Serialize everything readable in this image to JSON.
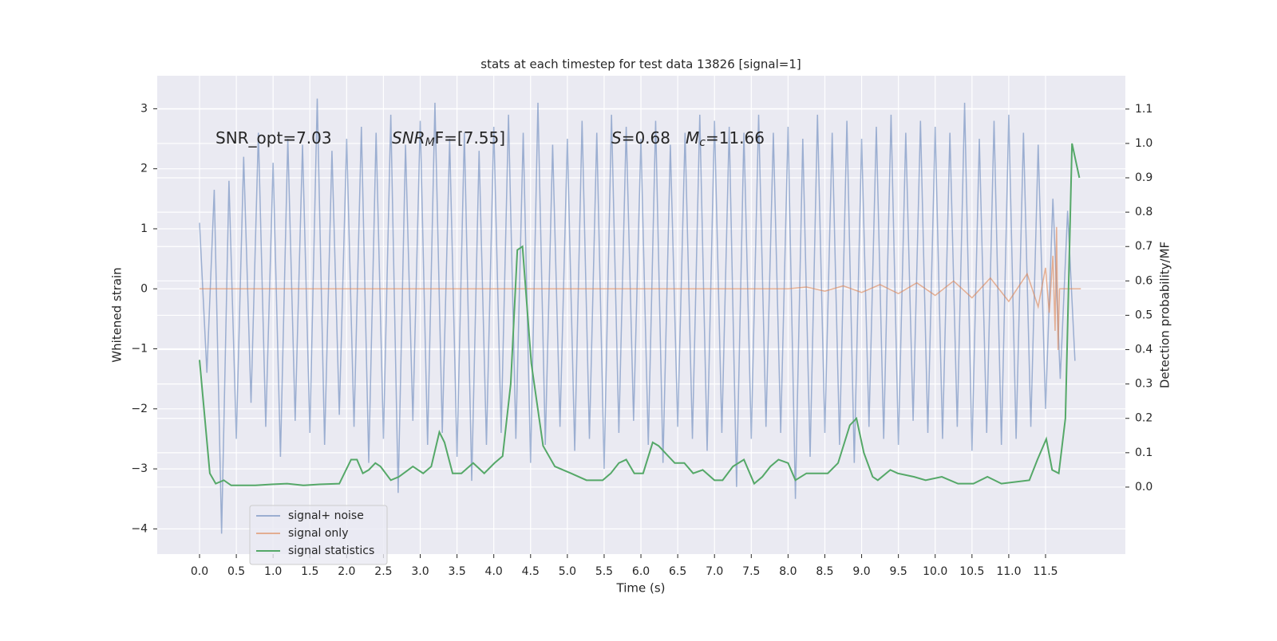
{
  "chart_data": {
    "type": "line",
    "title": "stats at each timestep for test data 13826 [signal=1]",
    "xlabel": "Time (s)",
    "ylabel": "Whitened strain",
    "y2label": "Detection probability/MF",
    "xlim": [
      -0.575,
      12.585
    ],
    "ylim": [
      -4.42,
      3.55
    ],
    "y2lim": [
      -0.195,
      1.197
    ],
    "xticks": [
      {
        "value": 0,
        "label": "0.0"
      },
      {
        "value": 0.5,
        "label": "0.5"
      },
      {
        "value": 1,
        "label": "1.0"
      },
      {
        "value": 1.5,
        "label": "1.5"
      },
      {
        "value": 2,
        "label": "2.0"
      },
      {
        "value": 2.5,
        "label": "2.5"
      },
      {
        "value": 3,
        "label": "3.0"
      },
      {
        "value": 3.5,
        "label": "3.5"
      },
      {
        "value": 4,
        "label": "4.0"
      },
      {
        "value": 4.5,
        "label": "4.5"
      },
      {
        "value": 5,
        "label": "5.0"
      },
      {
        "value": 5.5,
        "label": "5.5"
      },
      {
        "value": 6,
        "label": "6.0"
      },
      {
        "value": 6.5,
        "label": "6.5"
      },
      {
        "value": 7,
        "label": "7.0"
      },
      {
        "value": 7.5,
        "label": "7.5"
      },
      {
        "value": 8,
        "label": "8.0"
      },
      {
        "value": 8.5,
        "label": "8.5"
      },
      {
        "value": 9,
        "label": "9.0"
      },
      {
        "value": 9.5,
        "label": "9.5"
      },
      {
        "value": 10,
        "label": "10.0"
      },
      {
        "value": 10.5,
        "label": "10.5"
      },
      {
        "value": 11,
        "label": "11.0"
      },
      {
        "value": 11.5,
        "label": "11.5"
      }
    ],
    "yticks": [
      {
        "value": -4,
        "label": "−4"
      },
      {
        "value": -3,
        "label": "−3"
      },
      {
        "value": -2,
        "label": "−2"
      },
      {
        "value": -1,
        "label": "−1"
      },
      0,
      1,
      2,
      3
    ],
    "y2ticks": [
      {
        "value": 0,
        "label": "0.0"
      },
      {
        "value": 0.1,
        "label": "0.1"
      },
      {
        "value": 0.2,
        "label": "0.2"
      },
      {
        "value": 0.3,
        "label": "0.3"
      },
      {
        "value": 0.4,
        "label": "0.4"
      },
      {
        "value": 0.5,
        "label": "0.5"
      },
      {
        "value": 0.6,
        "label": "0.6"
      },
      {
        "value": 0.7,
        "label": "0.7"
      },
      {
        "value": 0.8,
        "label": "0.8"
      },
      {
        "value": 0.9,
        "label": "0.9"
      },
      {
        "value": 1,
        "label": "1.0"
      },
      {
        "value": 1.1,
        "label": "1.1"
      }
    ],
    "grid": true,
    "legend": "lower left",
    "annotations": [
      {
        "text": "SNR_opt=7.03"
      },
      {
        "base": "SNR",
        "sub": "M",
        "rest": "F=[7.55]"
      },
      {
        "base": "S",
        "rest": "=0.68"
      },
      {
        "base": "M",
        "sub": "c",
        "rest": "=11.66"
      }
    ],
    "series": [
      {
        "name": "signal+ noise",
        "color": "#4c72b0",
        "opacity": 0.5,
        "x": [
          0,
          0.1,
          0.2,
          0.3,
          0.4,
          0.5,
          0.6,
          0.7,
          0.8,
          0.9,
          1,
          1.1,
          1.2,
          1.3,
          1.4,
          1.5,
          1.6,
          1.7,
          1.8,
          1.9,
          2,
          2.1,
          2.2,
          2.3,
          2.4,
          2.5,
          2.6,
          2.7,
          2.8,
          2.9,
          3,
          3.1,
          3.2,
          3.3,
          3.4,
          3.5,
          3.6,
          3.7,
          3.8,
          3.9,
          4,
          4.1,
          4.2,
          4.3,
          4.4,
          4.5,
          4.6,
          4.7,
          4.8,
          4.9,
          5,
          5.1,
          5.2,
          5.3,
          5.4,
          5.5,
          5.6,
          5.7,
          5.8,
          5.9,
          6,
          6.1,
          6.2,
          6.3,
          6.4,
          6.5,
          6.6,
          6.7,
          6.8,
          6.9,
          7,
          7.1,
          7.2,
          7.3,
          7.4,
          7.5,
          7.6,
          7.7,
          7.8,
          7.9,
          8,
          8.1,
          8.2,
          8.3,
          8.4,
          8.5,
          8.6,
          8.7,
          8.8,
          8.9,
          9,
          9.1,
          9.2,
          9.3,
          9.4,
          9.5,
          9.6,
          9.7,
          9.8,
          9.9,
          10,
          10.1,
          10.2,
          10.3,
          10.4,
          10.5,
          10.6,
          10.7,
          10.8,
          10.9,
          11,
          11.1,
          11.2,
          11.3,
          11.4,
          11.5,
          11.6,
          11.7,
          11.8,
          11.9
        ],
        "values": [
          1.1,
          -1.4,
          1.65,
          -4.08,
          1.8,
          -2.5,
          2.2,
          -1.9,
          2.6,
          -2.3,
          2.1,
          -2.8,
          2.5,
          -2.2,
          2.4,
          -2.4,
          3.17,
          -2.6,
          2.3,
          -2.1,
          2.5,
          -2.3,
          2.7,
          -2.9,
          2.6,
          -2.5,
          2.9,
          -3.4,
          2.4,
          -2.2,
          2.8,
          -2.6,
          3.1,
          -2.4,
          2.5,
          -2.8,
          2.6,
          -3.2,
          2.3,
          -2.6,
          2.7,
          -2.4,
          2.9,
          -2.5,
          2.6,
          -2.9,
          3.1,
          -2.6,
          2.4,
          -2.3,
          2.5,
          -2.7,
          2.8,
          -2.5,
          2.6,
          -3.0,
          2.9,
          -2.4,
          2.7,
          -2.2,
          2.5,
          -2.6,
          2.8,
          -2.9,
          2.4,
          -2.3,
          2.6,
          -2.5,
          2.9,
          -2.7,
          2.8,
          -2.4,
          2.7,
          -3.3,
          2.6,
          -2.5,
          2.9,
          -2.3,
          2.6,
          -2.4,
          2.7,
          -3.5,
          2.5,
          -2.8,
          2.9,
          -2.4,
          2.6,
          -2.6,
          2.8,
          -2.9,
          2.5,
          -2.3,
          2.7,
          -2.5,
          2.9,
          -2.6,
          2.6,
          -2.2,
          2.8,
          -2.4,
          2.7,
          -2.5,
          2.6,
          -2.3,
          3.1,
          -2.7,
          2.5,
          -2.4,
          2.8,
          -2.6,
          2.9,
          -2.5,
          2.6,
          -2.3,
          2.4,
          -2.0,
          1.5,
          -1.5,
          1.3,
          -1.2
        ]
      },
      {
        "name": "signal only",
        "color": "#dd8452",
        "opacity": 0.6,
        "x": [
          0,
          8,
          8.25,
          8.5,
          8.75,
          9,
          9.25,
          9.5,
          9.75,
          10,
          10.25,
          10.5,
          10.75,
          11,
          11.25,
          11.4,
          11.5,
          11.55,
          11.6,
          11.63,
          11.65,
          11.67,
          11.69,
          11.98
        ],
        "values": [
          0,
          0,
          0.03,
          -0.04,
          0.05,
          -0.06,
          0.07,
          -0.08,
          0.1,
          -0.11,
          0.13,
          -0.15,
          0.18,
          -0.21,
          0.25,
          -0.3,
          0.35,
          -0.4,
          0.55,
          -0.7,
          1.03,
          -1.02,
          0,
          0
        ]
      },
      {
        "name": "signal statistics",
        "color": "#55a868",
        "opacity": 1,
        "axis": "y2",
        "x": [
          0,
          0.14,
          0.22,
          0.33,
          0.43,
          0.76,
          0.98,
          1.19,
          1.41,
          1.63,
          1.9,
          2.06,
          2.14,
          2.22,
          2.3,
          2.39,
          2.46,
          2.6,
          2.71,
          2.9,
          3.04,
          3.15,
          3.26,
          3.33,
          3.44,
          3.56,
          3.72,
          3.87,
          4.01,
          4.12,
          4.23,
          4.32,
          4.39,
          4.51,
          4.67,
          4.83,
          5.05,
          5.26,
          5.48,
          5.59,
          5.7,
          5.8,
          5.91,
          6.03,
          6.16,
          6.24,
          6.46,
          6.59,
          6.71,
          6.84,
          7,
          7.11,
          7.25,
          7.4,
          7.54,
          7.65,
          7.76,
          7.87,
          8,
          8.1,
          8.25,
          8.41,
          8.54,
          8.68,
          8.84,
          8.93,
          9.03,
          9.15,
          9.22,
          9.39,
          9.49,
          9.71,
          9.87,
          10.09,
          10.31,
          10.52,
          10.71,
          10.9,
          11.28,
          11.39,
          11.51,
          11.59,
          11.68,
          11.77,
          11.86,
          11.96
        ],
        "values": [
          0.37,
          0.04,
          0.01,
          0.02,
          0.005,
          0.005,
          0.008,
          0.01,
          0.005,
          0.008,
          0.01,
          0.08,
          0.08,
          0.04,
          0.05,
          0.07,
          0.06,
          0.02,
          0.03,
          0.06,
          0.04,
          0.06,
          0.16,
          0.13,
          0.04,
          0.04,
          0.07,
          0.04,
          0.07,
          0.09,
          0.3,
          0.69,
          0.7,
          0.36,
          0.12,
          0.06,
          0.04,
          0.02,
          0.02,
          0.04,
          0.07,
          0.08,
          0.04,
          0.04,
          0.13,
          0.12,
          0.07,
          0.07,
          0.04,
          0.05,
          0.02,
          0.02,
          0.06,
          0.08,
          0.01,
          0.03,
          0.06,
          0.08,
          0.07,
          0.02,
          0.04,
          0.04,
          0.04,
          0.07,
          0.18,
          0.2,
          0.1,
          0.03,
          0.02,
          0.05,
          0.04,
          0.03,
          0.02,
          0.03,
          0.01,
          0.01,
          0.03,
          0.01,
          0.02,
          0.08,
          0.14,
          0.05,
          0.04,
          0.2,
          1.0,
          0.9
        ]
      }
    ]
  }
}
